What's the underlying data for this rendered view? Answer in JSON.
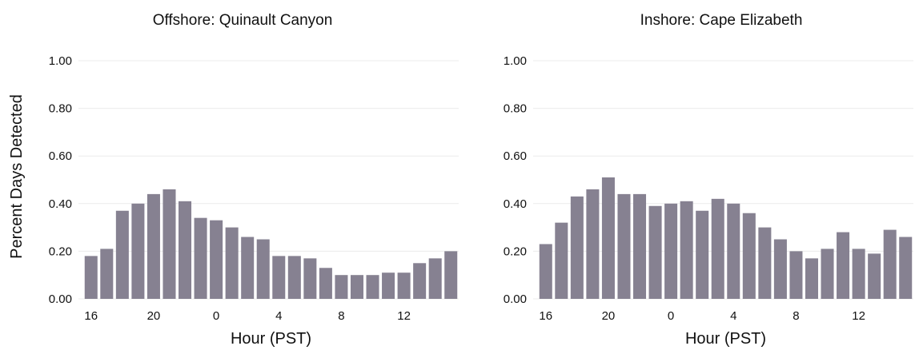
{
  "shared_ylabel": "Percent Days Detected",
  "chart_data": [
    {
      "type": "bar",
      "title": "Offshore: Quinault Canyon",
      "xlabel": "Hour (PST)",
      "ylabel": "Percent Days Detected",
      "ylim": [
        0,
        1
      ],
      "yticks": [
        "0.00",
        "0.20",
        "0.40",
        "0.60",
        "0.80",
        "1.00"
      ],
      "xtick_labels": [
        "16",
        "20",
        "0",
        "4",
        "8",
        "12"
      ],
      "categories": [
        "16",
        "17",
        "18",
        "19",
        "20",
        "21",
        "22",
        "23",
        "0",
        "1",
        "2",
        "3",
        "4",
        "5",
        "6",
        "7",
        "8",
        "9",
        "10",
        "11",
        "12",
        "13",
        "14",
        "15"
      ],
      "values": [
        0.18,
        0.21,
        0.37,
        0.4,
        0.44,
        0.46,
        0.41,
        0.34,
        0.33,
        0.3,
        0.26,
        0.25,
        0.18,
        0.18,
        0.17,
        0.13,
        0.1,
        0.1,
        0.1,
        0.11,
        0.11,
        0.15,
        0.17,
        0.2
      ],
      "grid": true,
      "color": "#868191"
    },
    {
      "type": "bar",
      "title": "Inshore: Cape Elizabeth",
      "xlabel": "Hour (PST)",
      "ylabel": "Percent Days Detected",
      "ylim": [
        0,
        1
      ],
      "yticks": [
        "0.00",
        "0.20",
        "0.40",
        "0.60",
        "0.80",
        "1.00"
      ],
      "xtick_labels": [
        "16",
        "20",
        "0",
        "4",
        "8",
        "12"
      ],
      "categories": [
        "16",
        "17",
        "18",
        "19",
        "20",
        "21",
        "22",
        "23",
        "0",
        "1",
        "2",
        "3",
        "4",
        "5",
        "6",
        "7",
        "8",
        "9",
        "10",
        "11",
        "12",
        "13",
        "14",
        "15"
      ],
      "values": [
        0.23,
        0.32,
        0.43,
        0.46,
        0.51,
        0.44,
        0.44,
        0.39,
        0.4,
        0.41,
        0.37,
        0.42,
        0.4,
        0.36,
        0.3,
        0.25,
        0.2,
        0.17,
        0.21,
        0.28,
        0.21,
        0.19,
        0.29,
        0.26
      ],
      "grid": true,
      "color": "#868191"
    }
  ]
}
